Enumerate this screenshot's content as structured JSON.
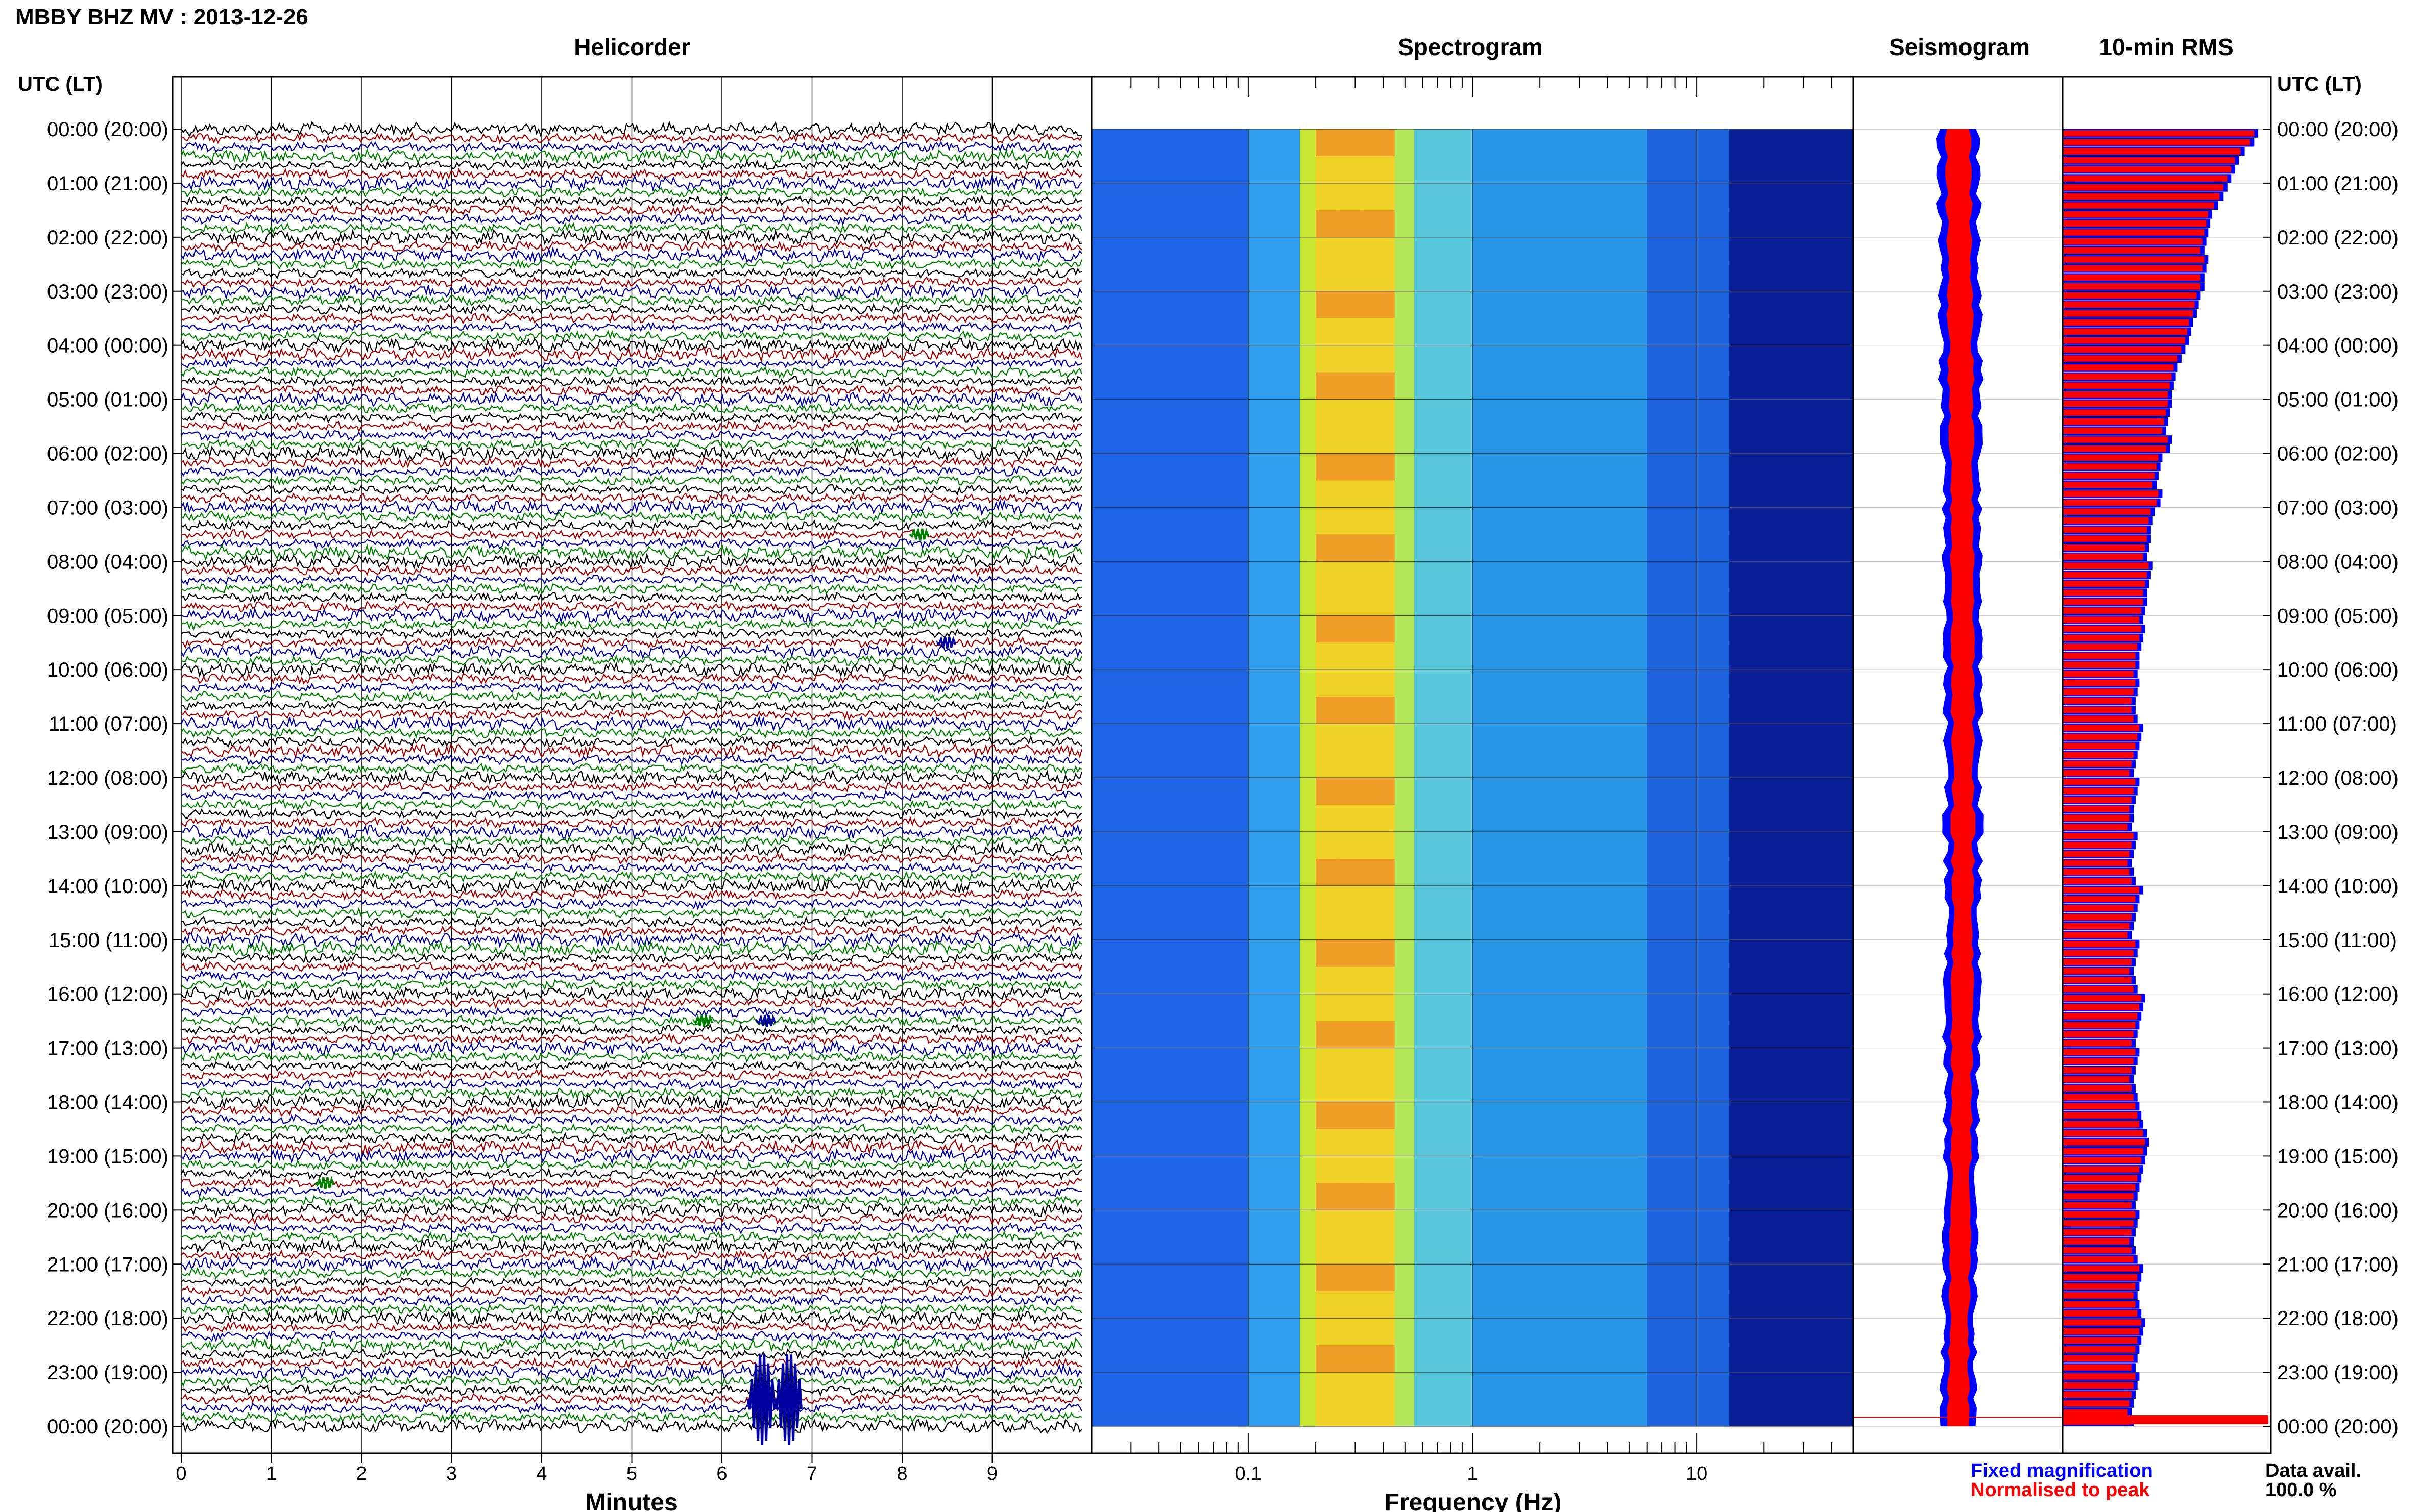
{
  "header": {
    "station_title": "MBBY BHZ MV : 2013-12-26",
    "time_axis_label": "UTC (LT)"
  },
  "panels": {
    "helicorder": "Helicorder",
    "spectrogram": "Spectrogram",
    "seismogram": "Seismogram",
    "rms": "10-min RMS"
  },
  "footer": {
    "minutes_label": "Minutes",
    "frequency_label": "Frequency (Hz)",
    "legend_fixed": "Fixed magnification",
    "legend_normalised": "Normalised to peak",
    "data_avail_label": "Data avail.",
    "data_avail_value": "100.0 %"
  },
  "colors": {
    "fixed_magnification": "#0000ff",
    "normalised_to_peak": "#ff0000",
    "trace_cycle": [
      "#000000",
      "#a00000",
      "#0000a0",
      "#008000"
    ]
  },
  "chart_data": {
    "time_labels": [
      "00:00 (20:00)",
      "01:00 (21:00)",
      "02:00 (22:00)",
      "03:00 (23:00)",
      "04:00 (00:00)",
      "05:00 (01:00)",
      "06:00 (02:00)",
      "07:00 (03:00)",
      "08:00 (04:00)",
      "09:00 (05:00)",
      "10:00 (06:00)",
      "11:00 (07:00)",
      "12:00 (08:00)",
      "13:00 (09:00)",
      "14:00 (10:00)",
      "15:00 (11:00)",
      "16:00 (12:00)",
      "17:00 (13:00)",
      "18:00 (14:00)",
      "19:00 (15:00)",
      "20:00 (16:00)",
      "21:00 (17:00)",
      "22:00 (18:00)",
      "23:00 (19:00)",
      "00:00 (20:00)"
    ],
    "helicorder": {
      "type": "line",
      "xlabel": "Minutes",
      "x_ticks": [
        0,
        1,
        2,
        3,
        4,
        5,
        6,
        7,
        8,
        9
      ],
      "xlim": [
        0,
        10
      ],
      "lines_per_hour": 6,
      "hours": 24,
      "events": [
        {
          "hour": 7,
          "minute": 8.2,
          "color": "#008000"
        },
        {
          "hour": 9,
          "minute": 8.5,
          "color": "#0000a0"
        },
        {
          "hour": 16,
          "minute": 5.8,
          "color": "#008000"
        },
        {
          "hour": 16,
          "minute": 6.5,
          "color": "#0000a0"
        },
        {
          "hour": 19,
          "minute": 1.6,
          "color": "#008000"
        },
        {
          "hour": 23,
          "minute": 6.4,
          "color": "#0000a0"
        },
        {
          "hour": 23,
          "minute": 6.7,
          "color": "#0000a0"
        }
      ]
    },
    "spectrogram": {
      "type": "heatmap",
      "xlabel": "Frequency (Hz)",
      "x_scale": "log",
      "xlim": [
        0.02,
        50
      ],
      "x_ticks": [
        0.1,
        1,
        10
      ],
      "x_tick_labels": [
        "0.1",
        "1",
        "10"
      ],
      "peak_band_hz": [
        0.2,
        0.45
      ]
    },
    "rms": {
      "type": "bar",
      "values": [
        1.0,
        0.98,
        0.93,
        0.9,
        0.88,
        0.86,
        0.84,
        0.82,
        0.79,
        0.76,
        0.75,
        0.74,
        0.73,
        0.72,
        0.74,
        0.73,
        0.72,
        0.72,
        0.7,
        0.69,
        0.68,
        0.66,
        0.65,
        0.64,
        0.62,
        0.6,
        0.58,
        0.57,
        0.56,
        0.55,
        0.55,
        0.54,
        0.53,
        0.52,
        0.55,
        0.54,
        0.5,
        0.49,
        0.48,
        0.47,
        0.5,
        0.49,
        0.46,
        0.45,
        0.44,
        0.44,
        0.43,
        0.42,
        0.45,
        0.44,
        0.43,
        0.42,
        0.42,
        0.41,
        0.4,
        0.41,
        0.4,
        0.39,
        0.38,
        0.38,
        0.37,
        0.38,
        0.37,
        0.36,
        0.36,
        0.37,
        0.4,
        0.39,
        0.38,
        0.37,
        0.36,
        0.35,
        0.38,
        0.37,
        0.36,
        0.35,
        0.35,
        0.34,
        0.37,
        0.36,
        0.35,
        0.34,
        0.35,
        0.36,
        0.4,
        0.38,
        0.37,
        0.36,
        0.35,
        0.34,
        0.38,
        0.37,
        0.36,
        0.35,
        0.36,
        0.37,
        0.41,
        0.4,
        0.39,
        0.38,
        0.37,
        0.36,
        0.38,
        0.37,
        0.36,
        0.35,
        0.36,
        0.37,
        0.38,
        0.39,
        0.4,
        0.42,
        0.43,
        0.42,
        0.41,
        0.4,
        0.39,
        0.38,
        0.37,
        0.36,
        0.38,
        0.37,
        0.36,
        0.35,
        0.36,
        0.37,
        0.4,
        0.39,
        0.38,
        0.37,
        0.38,
        0.39,
        0.41,
        0.4,
        0.39,
        0.38,
        0.37,
        0.36,
        0.38,
        0.37,
        0.36,
        0.35,
        0.34,
        0.35
      ],
      "data_availability_percent": 100.0
    }
  }
}
